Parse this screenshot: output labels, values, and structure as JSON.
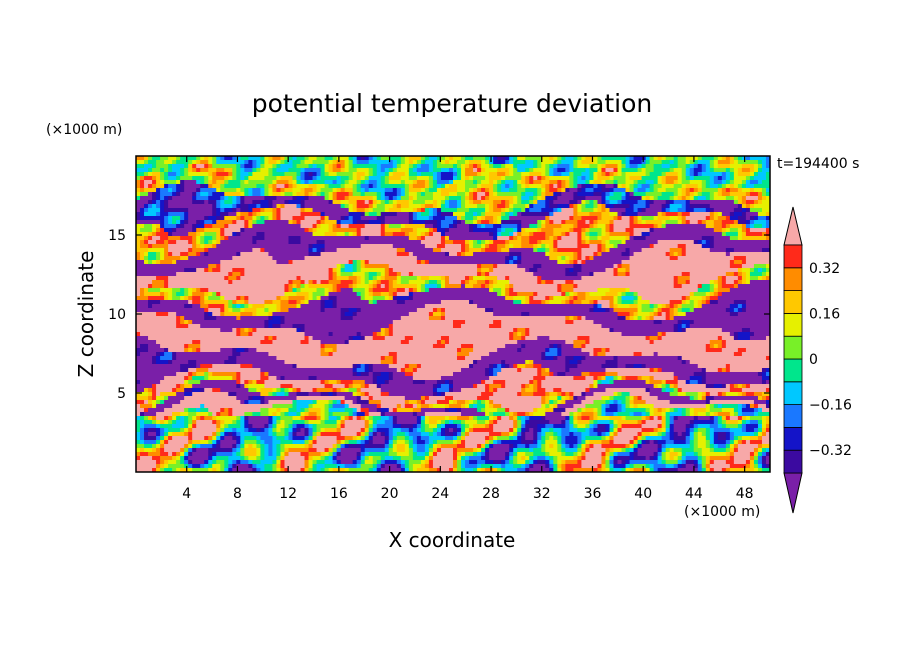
{
  "chart_data": {
    "type": "heatmap",
    "title": "potential temperature deviation",
    "xlabel": "X coordinate",
    "ylabel": "Z coordinate",
    "x_unit": "(×1000 m)",
    "y_unit": "(×1000 m)",
    "time_label": "t=194400 s",
    "xlim": [
      0,
      50
    ],
    "ylim": [
      0,
      20
    ],
    "x_ticks": [
      4,
      8,
      12,
      16,
      20,
      24,
      28,
      32,
      36,
      40,
      44,
      48
    ],
    "y_ticks": [
      5,
      10,
      15
    ],
    "colorbar": {
      "levels": [
        -0.48,
        -0.4,
        -0.32,
        -0.24,
        -0.16,
        -0.08,
        0,
        0.08,
        0.16,
        0.24,
        0.32,
        0.4,
        0.48
      ],
      "tick_values": [
        -0.32,
        -0.16,
        0,
        0.16,
        0.32
      ],
      "tick_labels": [
        "−0.32",
        "−0.16",
        "0",
        "0.16",
        "0.32"
      ],
      "colors": [
        "#7a1fa8",
        "#3b0aa0",
        "#1414c8",
        "#1a78ff",
        "#00c8ff",
        "#00e68c",
        "#78f028",
        "#e6f000",
        "#ffc800",
        "#ff8c00",
        "#ff2a1a",
        "#f7a8a8"
      ],
      "extend": "both"
    }
  }
}
